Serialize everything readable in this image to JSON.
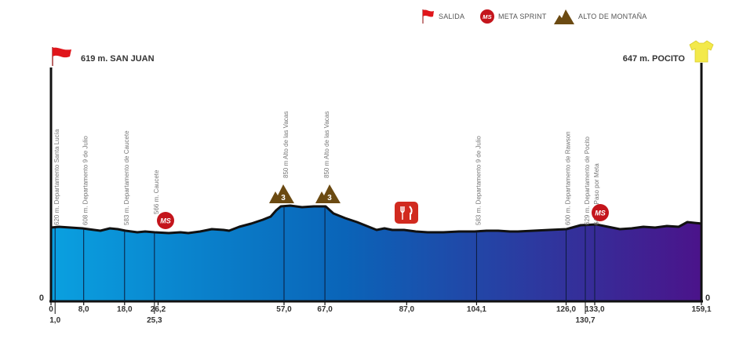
{
  "legend": {
    "salida": "SALIDA",
    "meta_sprint": "META SPRINT",
    "alto_montana": "ALTO DE MONTAÑA",
    "ms_badge": "MS"
  },
  "start": {
    "label": "619 m. SAN JUAN",
    "icon": "red-flag-icon"
  },
  "finish": {
    "label": "647 m. POCITO",
    "icon": "yellow-jersey-icon"
  },
  "elevation_zero_left": "0",
  "elevation_zero_right": "0",
  "points": [
    {
      "label": "620 m. Departamento Santa Lucía",
      "km": 1.0
    },
    {
      "label": "608 m. Departamento 9 de Julio",
      "km": 8.0
    },
    {
      "label": "583 m. Departamento de Caucete",
      "km": 18.0
    },
    {
      "label": "566 m. Caucete",
      "km": 25.3
    },
    {
      "label": "850 m Alto de las Vacas",
      "km": 57.0
    },
    {
      "label": "850 m Alto de las Vacas",
      "km": 67.0
    },
    {
      "label": "583 m. Departamento 9 de Julio",
      "km": 104.1
    },
    {
      "label": "600 m. Departamento de Rawson",
      "km": 126.0
    },
    {
      "label": "629 m. Departamento de Pocito",
      "km": 130.7
    },
    {
      "label": "647 m. Paso por Meta",
      "km": 133.0
    }
  ],
  "km_top": [
    "0",
    "8,0",
    "18,0",
    "26,2",
    "57,0",
    "67,0",
    "87,0",
    "104,1",
    "126,0",
    "133,0",
    "159,1"
  ],
  "km_bottom": [
    "1,0",
    "25,3",
    "130,7"
  ],
  "markers": {
    "sprints": [
      {
        "label": "MS",
        "km": 26.2
      },
      {
        "label": "MS",
        "km": 133.0
      }
    ],
    "climbs": [
      {
        "category": "3",
        "km": 57.0
      },
      {
        "category": "3",
        "km": 67.0
      }
    ],
    "feed_zone": {
      "icon": "fork-knife-icon",
      "km": 87.0
    }
  },
  "colors": {
    "profile_start": "#0a98d8",
    "profile_mid": "#0a5fb4",
    "profile_end": "#4a148c",
    "flag": "#e0161b",
    "ms_badge": "#c4151c",
    "climb": "#6b4a12",
    "jersey": "#f3e94a",
    "feed": "#d12a1f"
  }
}
